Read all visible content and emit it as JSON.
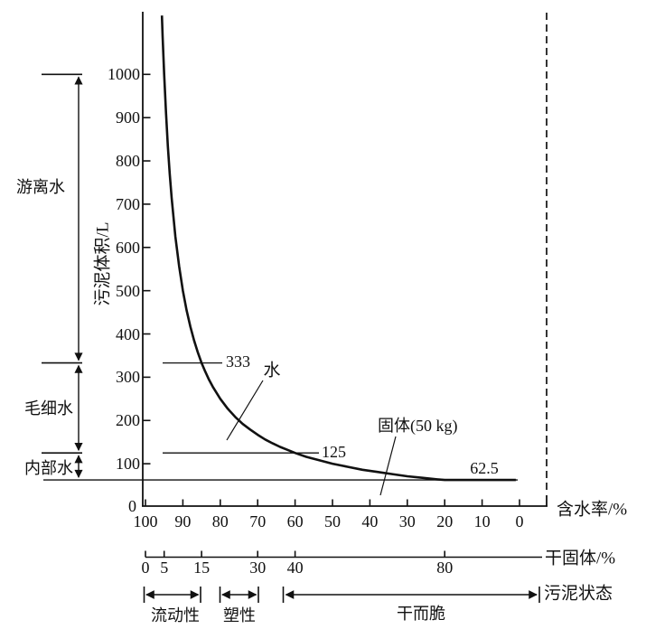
{
  "chart_data": {
    "type": "line",
    "title": "",
    "xlabel": "含水率/%",
    "ylabel": "污泥体积/L",
    "grid": false,
    "legend": null,
    "x_axis": {
      "title": "含水率/%",
      "range": [
        100,
        0
      ],
      "ticks": [
        100,
        90,
        80,
        70,
        60,
        50,
        40,
        30,
        20,
        10,
        0
      ]
    },
    "y_axis": {
      "title": "污泥体积/L",
      "range": [
        0,
        1000
      ],
      "ticks": [
        100,
        200,
        300,
        400,
        500,
        600,
        700,
        800,
        900,
        1000
      ],
      "origin_label": "0"
    },
    "dry_solids_axis": {
      "title": "干固体/%",
      "ticks": [
        0,
        5,
        15,
        30,
        40,
        80
      ]
    },
    "series": [
      {
        "name": "污泥体积-含水率曲线 (固体 50 kg)",
        "points_water_pct_vs_volume_L": [
          [
            95.6,
            1136
          ],
          [
            95.4,
            1087
          ],
          [
            95,
            1000
          ],
          [
            94.5,
            909
          ],
          [
            94,
            833
          ],
          [
            93.5,
            769
          ],
          [
            93,
            714
          ],
          [
            92,
            625
          ],
          [
            91,
            556
          ],
          [
            90,
            500
          ],
          [
            89,
            455
          ],
          [
            88,
            417
          ],
          [
            87,
            385
          ],
          [
            86,
            357
          ],
          [
            85,
            333
          ],
          [
            84,
            313
          ],
          [
            83,
            294
          ],
          [
            82,
            278
          ],
          [
            80,
            250
          ],
          [
            78,
            227
          ],
          [
            76,
            208
          ],
          [
            74,
            192
          ],
          [
            72,
            179
          ],
          [
            70,
            167
          ],
          [
            68,
            156
          ],
          [
            66,
            147
          ],
          [
            64,
            139
          ],
          [
            62,
            132
          ],
          [
            60,
            125
          ],
          [
            57,
            116
          ],
          [
            54,
            109
          ],
          [
            50,
            100
          ],
          [
            46,
            93
          ],
          [
            42,
            86
          ],
          [
            38,
            81
          ],
          [
            34,
            76
          ],
          [
            30,
            71
          ],
          [
            26,
            67.5
          ],
          [
            22,
            64
          ],
          [
            20,
            62.5
          ],
          [
            15,
            62.5
          ],
          [
            10,
            62.5
          ],
          [
            5,
            62.5
          ],
          [
            1,
            62.5
          ]
        ]
      }
    ],
    "guide_lines": [
      {
        "volume_L": 333,
        "label": "333"
      },
      {
        "volume_L": 125,
        "label": "125"
      },
      {
        "volume_L": 62.5,
        "label": "62.5"
      }
    ]
  },
  "annotations": {
    "water_label": "水",
    "solids_label": "固体(50 kg)"
  },
  "water_regions": [
    {
      "label": "游离水",
      "from_volume_L": 333,
      "to_volume_L": 1000
    },
    {
      "label": "毛细水",
      "from_volume_L": 125,
      "to_volume_L": 333
    },
    {
      "label": "内部水",
      "from_volume_L": 62.5,
      "to_volume_L": 125
    }
  ],
  "state_axis": {
    "title": "污泥状态",
    "regions": [
      {
        "label": "流动性"
      },
      {
        "label": "塑性"
      },
      {
        "label": "干而脆"
      }
    ]
  }
}
